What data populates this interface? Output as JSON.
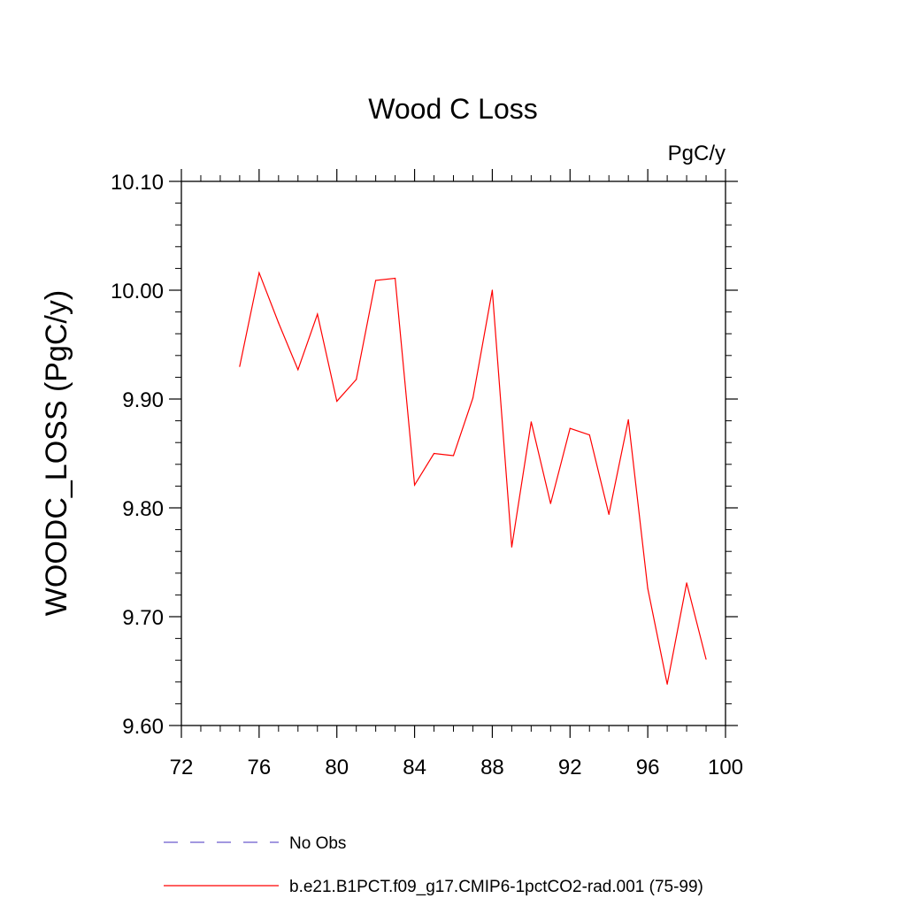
{
  "chart_data": {
    "type": "line",
    "title": "Wood C Loss",
    "units_label": "PgC/y",
    "ylabel": "WOODC_LOSS  (PgC/y)",
    "xlabel": "",
    "xlim": [
      72,
      100
    ],
    "ylim": [
      9.6,
      10.1
    ],
    "x_major_ticks": [
      72,
      76,
      80,
      84,
      88,
      92,
      96,
      100
    ],
    "x_tick_labels": [
      "72",
      "76",
      "80",
      "84",
      "88",
      "92",
      "96",
      "100"
    ],
    "y_major_ticks": [
      9.6,
      9.7,
      9.8,
      9.9,
      10.0,
      10.1
    ],
    "y_tick_labels": [
      "9.60",
      "9.70",
      "9.80",
      "9.90",
      "10.00",
      "10.10"
    ],
    "grid": false,
    "legend_position": "bottom",
    "series": [
      {
        "name": "b.e21.B1PCT.f09_g17.CMIP6-1pctCO2-rad.001 (75-99)",
        "color": "#ff0000",
        "style": "solid",
        "x": [
          75,
          76,
          77,
          78,
          79,
          80,
          81,
          82,
          83,
          84,
          85,
          86,
          87,
          88,
          89,
          90,
          91,
          92,
          93,
          94,
          95,
          96,
          97,
          98,
          99
        ],
        "y": [
          9.93,
          10.016,
          9.97,
          9.927,
          9.978,
          9.898,
          9.918,
          10.009,
          10.011,
          9.821,
          9.85,
          9.848,
          9.901,
          10.0,
          9.764,
          9.879,
          9.804,
          9.873,
          9.867,
          9.794,
          9.881,
          9.726,
          9.638,
          9.731,
          9.661
        ]
      }
    ],
    "legend": [
      {
        "label": "No Obs",
        "color": "#6a5acd",
        "style": "dashed"
      },
      {
        "label": "b.e21.B1PCT.f09_g17.CMIP6-1pctCO2-rad.001 (75-99)",
        "color": "#ff0000",
        "style": "solid"
      }
    ]
  }
}
